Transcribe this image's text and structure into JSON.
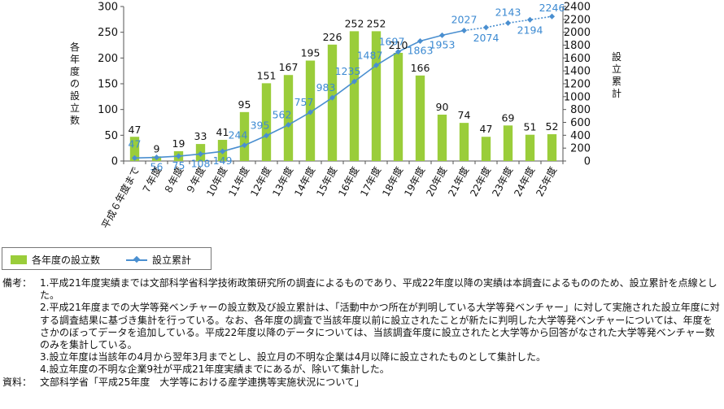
{
  "chart_data": {
    "type": "bar+line",
    "categories": [
      "平成６年度まで",
      "７年度",
      "８年度",
      "９年度",
      "10年度",
      "11年度",
      "12年度",
      "13年度",
      "14年度",
      "15年度",
      "16年度",
      "17年度",
      "18年度",
      "19年度",
      "20年度",
      "21年度",
      "22年度",
      "23年度",
      "24年度",
      "25年度"
    ],
    "series": [
      {
        "name": "各年度の設立数",
        "type": "bar",
        "axis": "left",
        "values": [
          47,
          9,
          19,
          33,
          41,
          95,
          151,
          167,
          195,
          226,
          252,
          252,
          210,
          166,
          90,
          74,
          47,
          69,
          51,
          52
        ]
      },
      {
        "name": "設立累計",
        "type": "line",
        "axis": "right",
        "values": [
          47,
          56,
          75,
          108,
          149,
          244,
          395,
          562,
          757,
          983,
          1235,
          1487,
          1697,
          1863,
          1953,
          2027,
          2074,
          2143,
          2194,
          2246
        ],
        "dotted_from_index": 15
      }
    ],
    "ylabel_left": "各年度の設立数",
    "ylabel_right": "設立累計",
    "ylim_left": [
      0,
      300
    ],
    "ylim_right": [
      0,
      2400
    ],
    "yticks_left": [
      0,
      50,
      100,
      150,
      200,
      250,
      300
    ],
    "yticks_right": [
      0,
      200,
      400,
      600,
      800,
      1000,
      1200,
      1400,
      1600,
      1800,
      2000,
      2200,
      2400
    ],
    "grid": false,
    "colors": {
      "bar": "#9ACD3A",
      "line": "#4A8FD0",
      "line_label": "#3C8AD2"
    }
  },
  "legend": {
    "bar_label": "各年度の設立数",
    "line_label": "設立累計"
  },
  "notes": {
    "label": "備考：",
    "items": [
      {
        "num": "1.",
        "text": "平成21年度実績までは文部科学省科学技術政策研究所の調査によるものであり、平成22年度以降の実績は本調査によるもののため、設立累計を点線とした。"
      },
      {
        "num": "2.",
        "text": "平成21年度までの大学等発ベンチャーの設立数及び設立累計は、「活動中かつ所在が判明している大学等発ベンチャー」に対して実施された設立年度に対する調査結果に基づき集計を行っている。なお、各年度の調査で当該年度以前に設立されたことが新たに判明した大学等発ベンチャーについては、年度をさかのぼってデータを追加している。平成22年度以降のデータについては、当該調査年度に設立されたと大学等から回答がなされた大学等発ベンチャー数のみを集計している。"
      },
      {
        "num": "3.",
        "text": "設立年度は当該年の4月から翌年3月までとし、設立月の不明な企業は4月以降に設立されたものとして集計した。"
      },
      {
        "num": "4.",
        "text": "設立年度の不明な企業9社が平成21年度実績までにあるが、除いて集計した。"
      }
    ],
    "source_label": "資料：",
    "source_text": "文部科学省「平成25年度　大学等における産学連携等実施状況について」"
  }
}
